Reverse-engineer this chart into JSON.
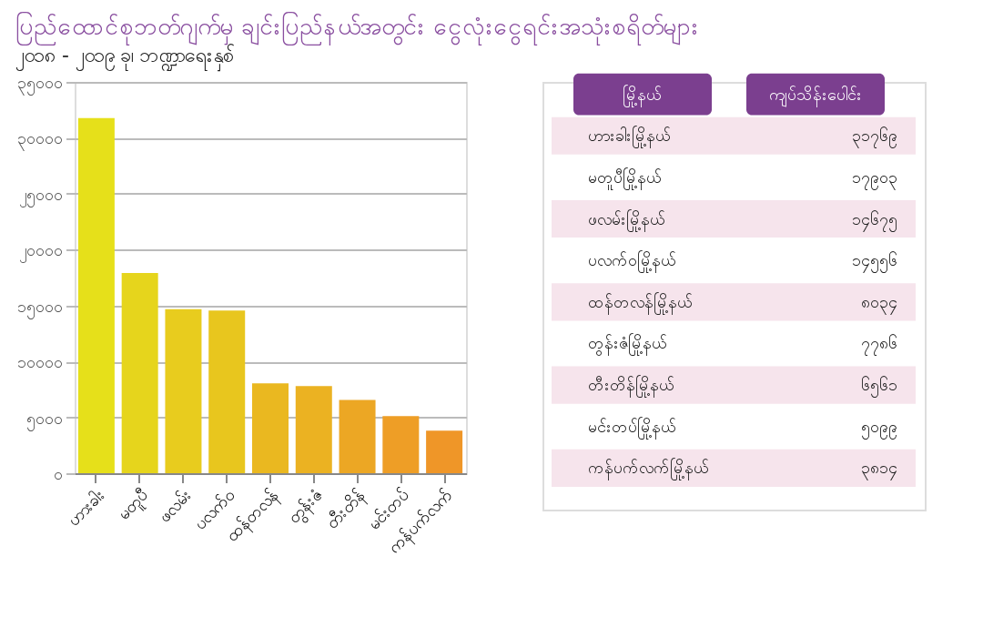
{
  "chart_data": {
    "type": "bar",
    "title": "ပြည်ထောင်စုဘတ်ဂျက်မှ ချင်းပြည်နယ်အတွင်း ငွေလုံးငွေရင်းအသုံးစရိတ်များ",
    "subtitle": "၂၀၁၈ - ၂၀၁၉ ခု၊ ဘဏ္ဍာရေးနှစ်",
    "categories": [
      "ဟားခါး",
      "မတူပီ",
      "ဖလမ်း",
      "ပလက်ဝ",
      "ထန်တလန်",
      "တွန်းဇံ",
      "တီးတိန်",
      "မင်းတပ်",
      "ကန်ပက်လက်"
    ],
    "values": [
      31769,
      17903,
      14675,
      14556,
      8034,
      7786,
      6561,
      5099,
      3814
    ],
    "colors": [
      "#e6e01a",
      "#e6d51c",
      "#e8cc1e",
      "#e8c61e",
      "#eab820",
      "#ebb222",
      "#eca724",
      "#ee9e26",
      "#ef9628"
    ],
    "annotations": [
      "မြို့နယ်",
      "ကျပ်သိန်းပေါင်း",
      "ဟားခါးမြို့နယ်",
      "မတူပီမြို့နယ်",
      "ဖလမ်းမြို့နယ်",
      "ပလက်ဝမြို့နယ်",
      "ထန်တလန်မြို့နယ်",
      "တွန်းဇံမြို့နယ်",
      "တီးတိန်မြို့နယ်",
      "မင်းတပ်မြို့နယ်",
      "ကန်ပက်လက်မြို့နယ်",
      "၃၁၇၆၉",
      "၁၇၉၀၃",
      "၁၄၆၇၅",
      "၁၄၅၅၆",
      "၈၀၃၄",
      "၇၇၈၆",
      "၆၅၆၁",
      "၅၀၉၉",
      "၃၈၁၄"
    ],
    "ylim": [
      0,
      35000
    ],
    "yticks": [
      {
        "value": 0,
        "label": "၀"
      },
      {
        "value": 5000,
        "label": "၅၀၀၀"
      },
      {
        "value": 10000,
        "label": "၁၀၀၀၀"
      },
      {
        "value": 15000,
        "label": "၁၅၀၀၀"
      },
      {
        "value": 20000,
        "label": "၂၀၀၀၀"
      },
      {
        "value": 25000,
        "label": "၂၅၀၀၀"
      },
      {
        "value": 30000,
        "label": "၃၀၀၀၀"
      },
      {
        "value": 35000,
        "label": "၃၅၀၀၀"
      }
    ],
    "grid": "y"
  }
}
